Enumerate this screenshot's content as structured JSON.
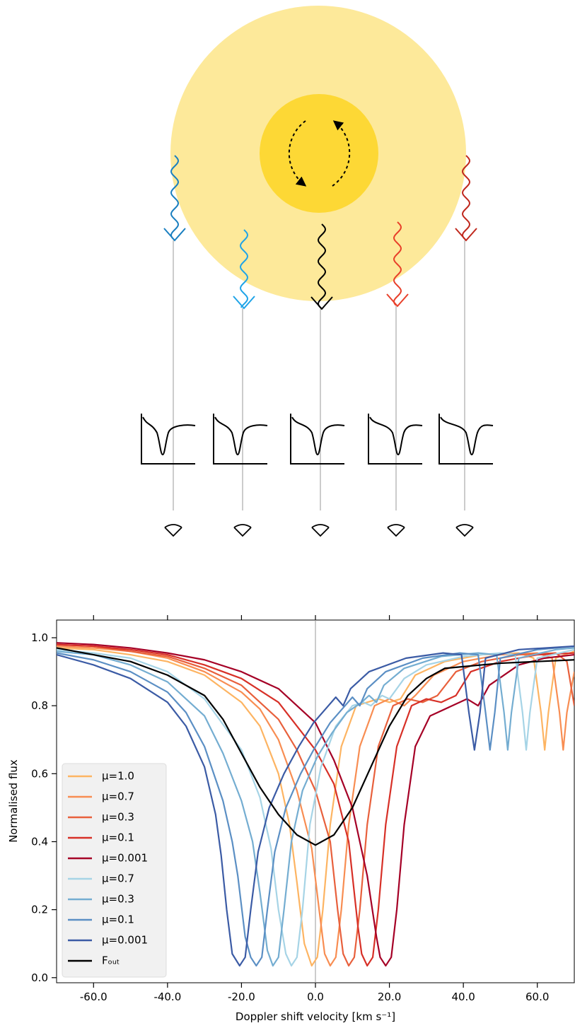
{
  "chart_data": {
    "type": "line",
    "xlabel": "Doppler shift velocity [km s⁻¹]",
    "ylabel": "Normalised flux",
    "xlim": [
      -70,
      70
    ],
    "ylim": [
      -0.015,
      1.052
    ],
    "xticks": [
      {
        "value": -60,
        "label": "-60.0"
      },
      {
        "value": -40,
        "label": "-40.0"
      },
      {
        "value": -20,
        "label": "-20.0"
      },
      {
        "value": 0,
        "label": "0.0"
      },
      {
        "value": 20,
        "label": "20.0"
      },
      {
        "value": 40,
        "label": "40.0"
      },
      {
        "value": 60,
        "label": "60.0"
      }
    ],
    "yticks": [
      {
        "value": 0,
        "label": "0.0"
      },
      0.2,
      0.4,
      0.6,
      0.8,
      {
        "value": 1,
        "label": "1.0"
      }
    ],
    "legend": "lower left",
    "series": [
      {
        "name": "μ=1.0",
        "color": "#fdb462",
        "x": [
          -70,
          -60,
          -50,
          -40,
          -30,
          -20,
          -15,
          -10,
          -7,
          -5,
          -3,
          -1,
          0.5,
          2,
          4,
          7,
          11,
          14,
          17,
          20,
          23,
          27,
          35,
          45,
          55,
          59,
          61,
          62,
          63,
          65,
          70
        ],
        "values": [
          0.97,
          0.965,
          0.95,
          0.93,
          0.89,
          0.81,
          0.74,
          0.6,
          0.45,
          0.28,
          0.1,
          0.035,
          0.06,
          0.2,
          0.45,
          0.68,
          0.8,
          0.81,
          0.82,
          0.81,
          0.82,
          0.89,
          0.93,
          0.95,
          0.955,
          0.94,
          0.78,
          0.67,
          0.78,
          0.94,
          0.96
        ]
      },
      {
        "name": "μ=0.7",
        "color": "#f88d52",
        "x": [
          -70,
          -60,
          -50,
          -40,
          -30,
          -20,
          -15,
          -10,
          -5,
          -1,
          1,
          2.5,
          4,
          5.5,
          7,
          9,
          12,
          16,
          20,
          24,
          27,
          32,
          40,
          50,
          60,
          64,
          66,
          67,
          68,
          70
        ],
        "values": [
          0.975,
          0.97,
          0.96,
          0.94,
          0.9,
          0.84,
          0.79,
          0.7,
          0.55,
          0.38,
          0.2,
          0.07,
          0.035,
          0.06,
          0.2,
          0.45,
          0.68,
          0.8,
          0.82,
          0.8,
          0.83,
          0.89,
          0.93,
          0.95,
          0.955,
          0.94,
          0.78,
          0.67,
          0.78,
          0.9
        ]
      },
      {
        "name": "μ=0.3",
        "color": "#e8603c",
        "x": [
          -70,
          -60,
          -50,
          -40,
          -30,
          -20,
          -10,
          -5,
          0,
          4,
          6,
          7.5,
          9,
          10.5,
          12,
          14,
          17,
          21,
          25,
          29,
          33,
          38,
          45,
          55,
          65,
          68,
          70
        ],
        "values": [
          0.98,
          0.975,
          0.96,
          0.945,
          0.91,
          0.86,
          0.76,
          0.67,
          0.55,
          0.4,
          0.2,
          0.07,
          0.035,
          0.06,
          0.2,
          0.45,
          0.68,
          0.8,
          0.82,
          0.81,
          0.83,
          0.9,
          0.93,
          0.95,
          0.955,
          0.93,
          0.8
        ]
      },
      {
        "name": "μ=0.1",
        "color": "#d73027",
        "x": [
          -70,
          -60,
          -50,
          -40,
          -30,
          -20,
          -10,
          0,
          5,
          9,
          11.5,
          12.5,
          14,
          15.5,
          17,
          19,
          22,
          26,
          30,
          34,
          38,
          42,
          50,
          60,
          70
        ],
        "values": [
          0.98,
          0.975,
          0.965,
          0.95,
          0.92,
          0.88,
          0.81,
          0.67,
          0.57,
          0.4,
          0.15,
          0.07,
          0.035,
          0.06,
          0.2,
          0.45,
          0.68,
          0.8,
          0.82,
          0.81,
          0.83,
          0.9,
          0.93,
          0.95,
          0.955
        ]
      },
      {
        "name": "μ=0.001",
        "color": "#a50026",
        "x": [
          -70,
          -60,
          -50,
          -40,
          -30,
          -20,
          -10,
          0,
          5,
          10,
          14,
          16.5,
          17.5,
          19,
          20.5,
          22,
          24,
          27,
          31,
          37,
          41,
          44,
          47,
          55,
          62,
          70
        ],
        "values": [
          0.985,
          0.98,
          0.97,
          0.955,
          0.935,
          0.9,
          0.85,
          0.75,
          0.64,
          0.5,
          0.3,
          0.12,
          0.06,
          0.035,
          0.06,
          0.2,
          0.45,
          0.68,
          0.77,
          0.8,
          0.82,
          0.8,
          0.86,
          0.92,
          0.94,
          0.95
        ]
      },
      {
        "name": "μ=0.7",
        "color": "#a6d4e6",
        "x": [
          -70,
          -60,
          -50,
          -40,
          -30,
          -20,
          -15,
          -12,
          -10,
          -8,
          -6.5,
          -5,
          -3.5,
          -1.5,
          1.5,
          5.5,
          10,
          13,
          15,
          18,
          20,
          24,
          30,
          40,
          50,
          54,
          56,
          57,
          58,
          60,
          70
        ],
        "values": [
          0.965,
          0.955,
          0.94,
          0.9,
          0.82,
          0.67,
          0.53,
          0.38,
          0.2,
          0.07,
          0.035,
          0.06,
          0.2,
          0.45,
          0.62,
          0.74,
          0.8,
          0.81,
          0.8,
          0.83,
          0.82,
          0.88,
          0.92,
          0.945,
          0.955,
          0.95,
          0.78,
          0.67,
          0.78,
          0.94,
          0.965
        ]
      },
      {
        "name": "μ=0.3",
        "color": "#74add1",
        "x": [
          -70,
          -60,
          -50,
          -40,
          -30,
          -25,
          -20,
          -17,
          -15,
          -13,
          -11.5,
          -10,
          -8.5,
          -6.5,
          -3.5,
          0.5,
          4.5,
          8.5,
          12.5,
          14.5,
          16.5,
          18.5,
          24,
          34,
          44,
          49,
          51,
          52,
          53,
          55,
          65,
          70
        ],
        "values": [
          0.96,
          0.95,
          0.92,
          0.87,
          0.77,
          0.66,
          0.52,
          0.4,
          0.25,
          0.08,
          0.035,
          0.06,
          0.2,
          0.4,
          0.55,
          0.65,
          0.72,
          0.78,
          0.81,
          0.83,
          0.81,
          0.86,
          0.91,
          0.945,
          0.955,
          0.95,
          0.78,
          0.67,
          0.78,
          0.94,
          0.965,
          0.97
        ]
      },
      {
        "name": "μ=0.1",
        "color": "#5b8fc4",
        "x": [
          -70,
          -60,
          -50,
          -40,
          -35,
          -30,
          -25,
          -22.5,
          -21,
          -19,
          -17.5,
          -16,
          -14.5,
          -13,
          -11,
          -8,
          -4,
          0,
          4,
          8,
          10,
          12,
          14,
          19,
          29,
          39,
          44,
          46,
          47.2,
          48.5,
          50,
          60,
          70
        ],
        "values": [
          0.955,
          0.935,
          0.9,
          0.84,
          0.78,
          0.68,
          0.52,
          0.4,
          0.3,
          0.12,
          0.06,
          0.035,
          0.06,
          0.2,
          0.37,
          0.5,
          0.6,
          0.68,
          0.75,
          0.8,
          0.825,
          0.8,
          0.85,
          0.9,
          0.94,
          0.955,
          0.95,
          0.78,
          0.67,
          0.78,
          0.94,
          0.965,
          0.975
        ]
      },
      {
        "name": "μ=0.001",
        "color": "#3b5ba5",
        "x": [
          -70,
          -60,
          -50,
          -40,
          -35,
          -30,
          -27,
          -25.5,
          -24,
          -22.5,
          -20.5,
          -19,
          -17.5,
          -15.5,
          -12.5,
          -8.5,
          -4.5,
          -0.5,
          3.5,
          5.5,
          7.5,
          9.5,
          14.5,
          24.5,
          34.5,
          39.5,
          41.5,
          43,
          44.5,
          46,
          55,
          70
        ],
        "values": [
          0.95,
          0.92,
          0.88,
          0.81,
          0.74,
          0.62,
          0.48,
          0.36,
          0.2,
          0.07,
          0.035,
          0.06,
          0.2,
          0.37,
          0.5,
          0.6,
          0.68,
          0.75,
          0.8,
          0.825,
          0.8,
          0.85,
          0.9,
          0.94,
          0.955,
          0.95,
          0.78,
          0.67,
          0.78,
          0.94,
          0.965,
          0.975
        ]
      },
      {
        "name": "Fₒᵤₜ",
        "color": "#000000",
        "x": [
          -70,
          -60,
          -50,
          -40,
          -30,
          -25,
          -20,
          -15,
          -10,
          -5,
          0,
          5,
          10,
          15,
          20,
          25,
          30,
          35,
          40,
          45,
          50,
          60,
          70
        ],
        "values": [
          0.97,
          0.95,
          0.93,
          0.89,
          0.83,
          0.76,
          0.66,
          0.56,
          0.48,
          0.42,
          0.39,
          0.42,
          0.5,
          0.62,
          0.74,
          0.83,
          0.88,
          0.91,
          0.915,
          0.92,
          0.925,
          0.93,
          0.935
        ]
      }
    ]
  }
}
